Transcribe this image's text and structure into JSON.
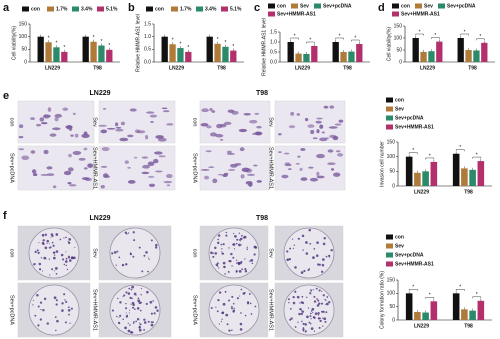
{
  "panel_labels": [
    "a",
    "b",
    "c",
    "d",
    "e",
    "f"
  ],
  "chart_data": [
    {
      "type": "bar",
      "y_label": "Cell viability(%)",
      "categories": [
        "LN229",
        "T98"
      ],
      "series": [
        {
          "name": "con",
          "color": "#111111",
          "values": [
            100,
            100
          ]
        },
        {
          "name": "1.7%",
          "color": "#b07a38",
          "values": [
            78,
            80
          ]
        },
        {
          "name": "3.4%",
          "color": "#2a8a6a",
          "values": [
            58,
            65
          ]
        },
        {
          "name": "5.1%",
          "color": "#b3306c",
          "values": [
            40,
            48
          ]
        }
      ],
      "ylim": [
        0,
        150
      ],
      "yticks": [
        0,
        50,
        100,
        150
      ],
      "significance": "*"
    },
    {
      "type": "bar",
      "y_label": "Relative HMMR-AS1 level",
      "categories": [
        "LN229",
        "T98"
      ],
      "series": [
        {
          "name": "con",
          "color": "#111111",
          "values": [
            1.0,
            1.0
          ]
        },
        {
          "name": "1.7%",
          "color": "#b07a38",
          "values": [
            0.7,
            0.72
          ]
        },
        {
          "name": "3.4%",
          "color": "#2a8a6a",
          "values": [
            0.55,
            0.6
          ]
        },
        {
          "name": "5.1%",
          "color": "#b3306c",
          "values": [
            0.4,
            0.45
          ]
        }
      ],
      "ylim": [
        0,
        1.5
      ],
      "yticks": [
        {
          "value": 0,
          "label": "0.0"
        },
        {
          "value": 0.5,
          "label": "0.5"
        },
        {
          "value": 1,
          "label": "1.0"
        },
        {
          "value": 1.5,
          "label": "1.5"
        }
      ],
      "significance": "*"
    },
    {
      "type": "bar",
      "y_label": "Relative HMMR-AS1 level",
      "categories": [
        "LN229",
        "T98"
      ],
      "series": [
        {
          "name": "con",
          "color": "#111111",
          "values": [
            1.0,
            1.0
          ]
        },
        {
          "name": "Sev",
          "color": "#b07a38",
          "values": [
            0.42,
            0.5
          ]
        },
        {
          "name": "Sev+pcDNA",
          "color": "#2a8a6a",
          "values": [
            0.4,
            0.52
          ]
        },
        {
          "name": "Sev+HMMR-AS1",
          "color": "#b3306c",
          "values": [
            0.8,
            0.9
          ]
        }
      ],
      "ylim": [
        0,
        1.5
      ],
      "yticks": [
        {
          "value": 0,
          "label": "0.0"
        },
        {
          "value": 0.5,
          "label": "0.5"
        },
        {
          "value": 1,
          "label": "1.0"
        },
        {
          "value": 1.5,
          "label": "1.5"
        }
      ],
      "significance": "*"
    },
    {
      "type": "bar",
      "y_label": "Cell viability(%)",
      "categories": [
        "LN229",
        "T98"
      ],
      "series": [
        {
          "name": "con",
          "color": "#111111",
          "values": [
            100,
            100
          ]
        },
        {
          "name": "Sev",
          "color": "#b07a38",
          "values": [
            42,
            50
          ]
        },
        {
          "name": "Sev+pcDNA",
          "color": "#2a8a6a",
          "values": [
            45,
            48
          ]
        },
        {
          "name": "Sev+HMMR-AS1",
          "color": "#b3306c",
          "values": [
            85,
            80
          ]
        }
      ],
      "ylim": [
        0,
        150
      ],
      "yticks": [
        0,
        50,
        100,
        150
      ],
      "significance": "*"
    },
    {
      "type": "bar",
      "y_label": "Invasion cell number",
      "categories": [
        "LN229",
        "T98"
      ],
      "series": [
        {
          "name": "con",
          "color": "#111111",
          "values": [
            100,
            110
          ]
        },
        {
          "name": "Sev",
          "color": "#b07a38",
          "values": [
            45,
            60
          ]
        },
        {
          "name": "Sev+pcDNA",
          "color": "#2a8a6a",
          "values": [
            50,
            55
          ]
        },
        {
          "name": "Sev+HMMR-AS1",
          "color": "#b3306c",
          "values": [
            82,
            85
          ]
        }
      ],
      "ylim": [
        0,
        150
      ],
      "yticks": [
        0,
        50,
        100,
        150
      ],
      "significance": "*"
    },
    {
      "type": "bar",
      "y_label": "Colony formation ratio (%)",
      "categories": [
        "LN229",
        "T98"
      ],
      "series": [
        {
          "name": "con",
          "color": "#111111",
          "values": [
            100,
            100
          ]
        },
        {
          "name": "Sev",
          "color": "#b07a38",
          "values": [
            30,
            40
          ]
        },
        {
          "name": "Sev+pcDNA",
          "color": "#2a8a6a",
          "values": [
            28,
            35
          ]
        },
        {
          "name": "Sev+HMMR-AS1",
          "color": "#b3306c",
          "values": [
            70,
            72
          ]
        }
      ],
      "ylim": [
        0,
        150
      ],
      "yticks": [
        0,
        50,
        100,
        150
      ],
      "significance": "*"
    }
  ],
  "image_panels": [
    {
      "groups": [
        "LN229",
        "T98"
      ],
      "labels": [
        "con",
        "Sev",
        "Sev+pcDNA",
        "Sev+HMMR-AS1"
      ]
    },
    {
      "groups": [
        "LN229",
        "T98"
      ],
      "labels": [
        "con",
        "Sev",
        "Sev+pcDNA",
        "Sev+HMMR-AS1"
      ]
    }
  ]
}
